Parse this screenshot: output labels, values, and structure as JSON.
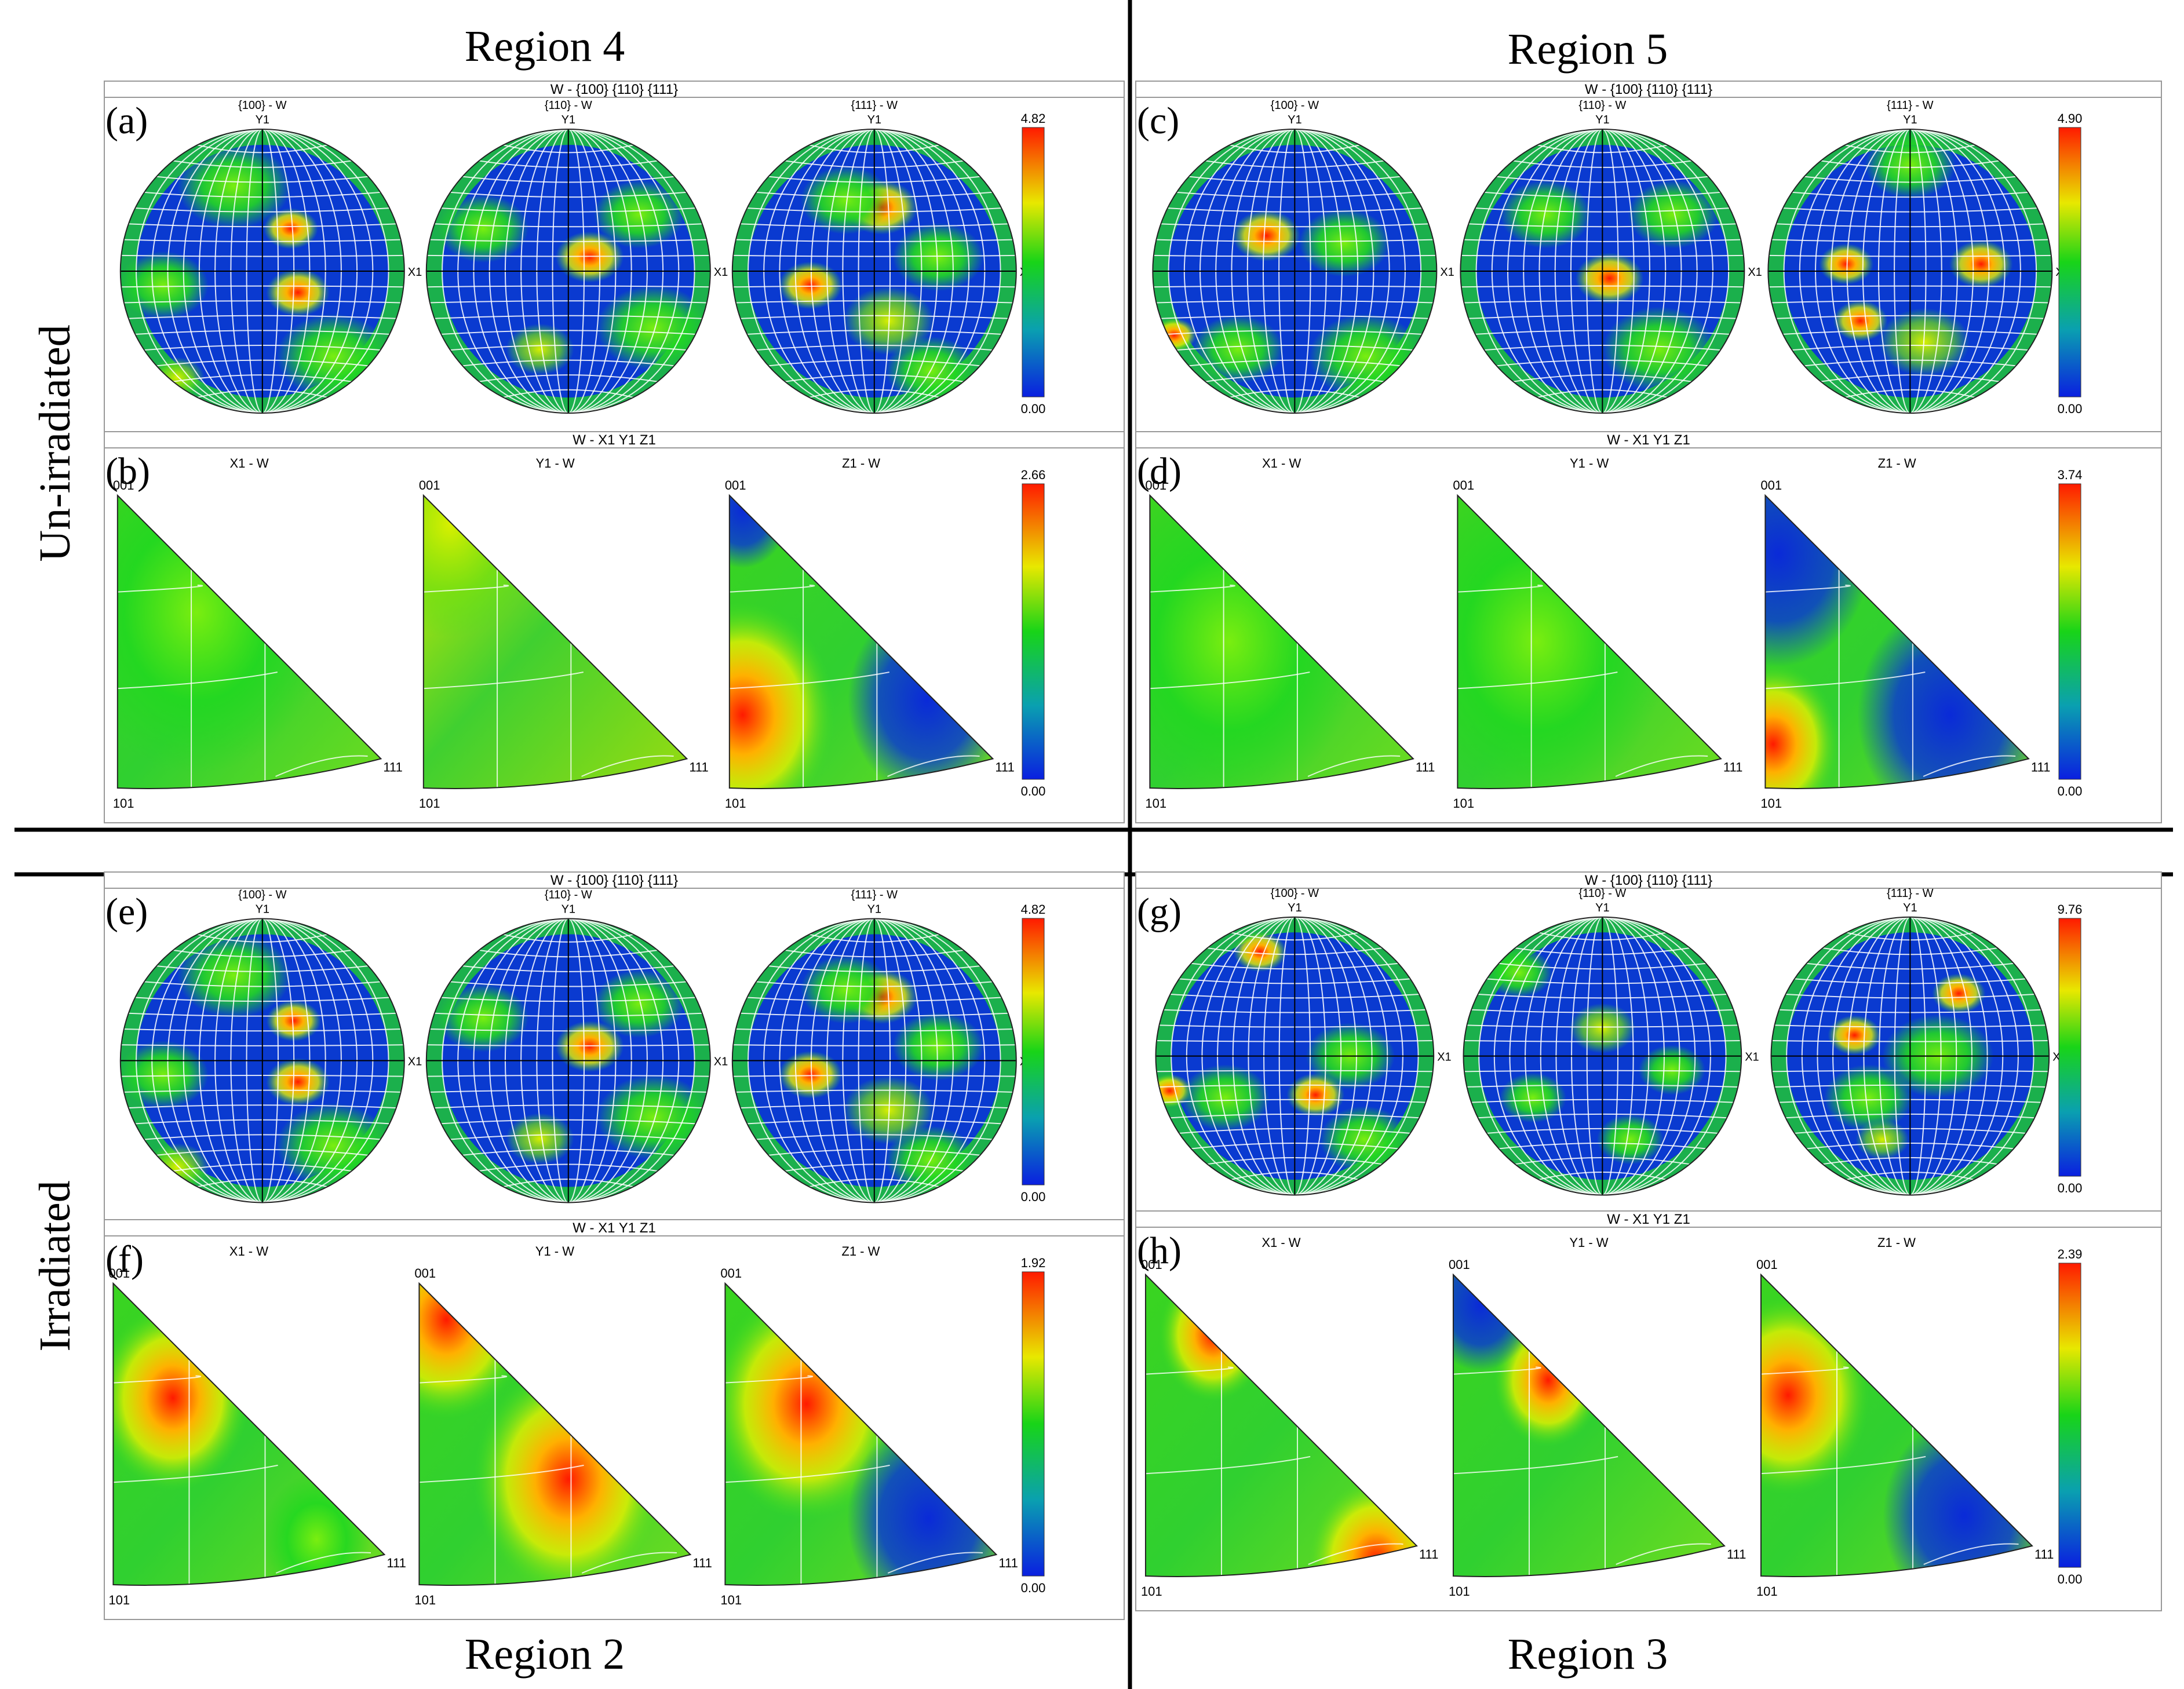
{
  "regions": {
    "top_left": "Region 4",
    "top_right": "Region 5",
    "bottom_left": "Region 2",
    "bottom_right": "Region 3"
  },
  "rows": {
    "top": "Un-irradiated",
    "bottom": "Irradiated"
  },
  "panels": [
    {
      "id": "a",
      "label": "(a)",
      "kind": "pf",
      "title": "W - {100} {110} {111}",
      "subtitles": [
        "{100} - W",
        "{110} - W",
        "{111} - W"
      ],
      "axis_y": "Y1",
      "axis_x": "X1",
      "scale_max": "4.82",
      "scale_min": "0.00"
    },
    {
      "id": "b",
      "label": "(b)",
      "kind": "ipf",
      "title": "W - X1 Y1 Z1",
      "subtitles": [
        "X1 - W",
        "Y1 - W",
        "Z1 - W"
      ],
      "v001": "001",
      "v101": "101",
      "v111": "111",
      "scale_max": "2.66",
      "scale_min": "0.00"
    },
    {
      "id": "c",
      "label": "(c)",
      "kind": "pf",
      "title": "W - {100} {110} {111}",
      "subtitles": [
        "{100} - W",
        "{110} - W",
        "{111} - W"
      ],
      "axis_y": "Y1",
      "axis_x": "X1",
      "scale_max": "4.90",
      "scale_min": "0.00"
    },
    {
      "id": "d",
      "label": "(d)",
      "kind": "ipf",
      "title": "W - X1 Y1 Z1",
      "subtitles": [
        "X1 - W",
        "Y1 - W",
        "Z1 - W"
      ],
      "v001": "001",
      "v101": "101",
      "v111": "111",
      "scale_max": "3.74",
      "scale_min": "0.00"
    },
    {
      "id": "e",
      "label": "(e)",
      "kind": "pf",
      "title": "W - {100} {110} {111}",
      "subtitles": [
        "{100} - W",
        "{110} - W",
        "{111} - W"
      ],
      "axis_y": "Y1",
      "axis_x": "X1",
      "scale_max": "4.82",
      "scale_min": "0.00"
    },
    {
      "id": "f",
      "label": "(f)",
      "kind": "ipf",
      "title": "W - X1 Y1 Z1",
      "subtitles": [
        "X1 - W",
        "Y1 - W",
        "Z1 - W"
      ],
      "v001": "001",
      "v101": "101",
      "v111": "111",
      "scale_max": "1.92",
      "scale_min": "0.00"
    },
    {
      "id": "g",
      "label": "(g)",
      "kind": "pf",
      "title": "W - {100} {110} {111}",
      "subtitles": [
        "{100} - W",
        "{110} - W",
        "{111} - W"
      ],
      "axis_y": "Y1",
      "axis_x": "X1",
      "scale_max": "9.76",
      "scale_min": "0.00"
    },
    {
      "id": "h",
      "label": "(h)",
      "kind": "ipf",
      "title": "W - X1 Y1 Z1",
      "subtitles": [
        "X1 - W",
        "Y1 - W",
        "Z1 - W"
      ],
      "v001": "001",
      "v101": "101",
      "v111": "111",
      "scale_max": "2.39",
      "scale_min": "0.00"
    }
  ],
  "colors": {
    "low": "#0a2fd6",
    "mid": "#18d418",
    "high": "#ff2200",
    "grid": "#ffffff",
    "frame": "#999999"
  }
}
